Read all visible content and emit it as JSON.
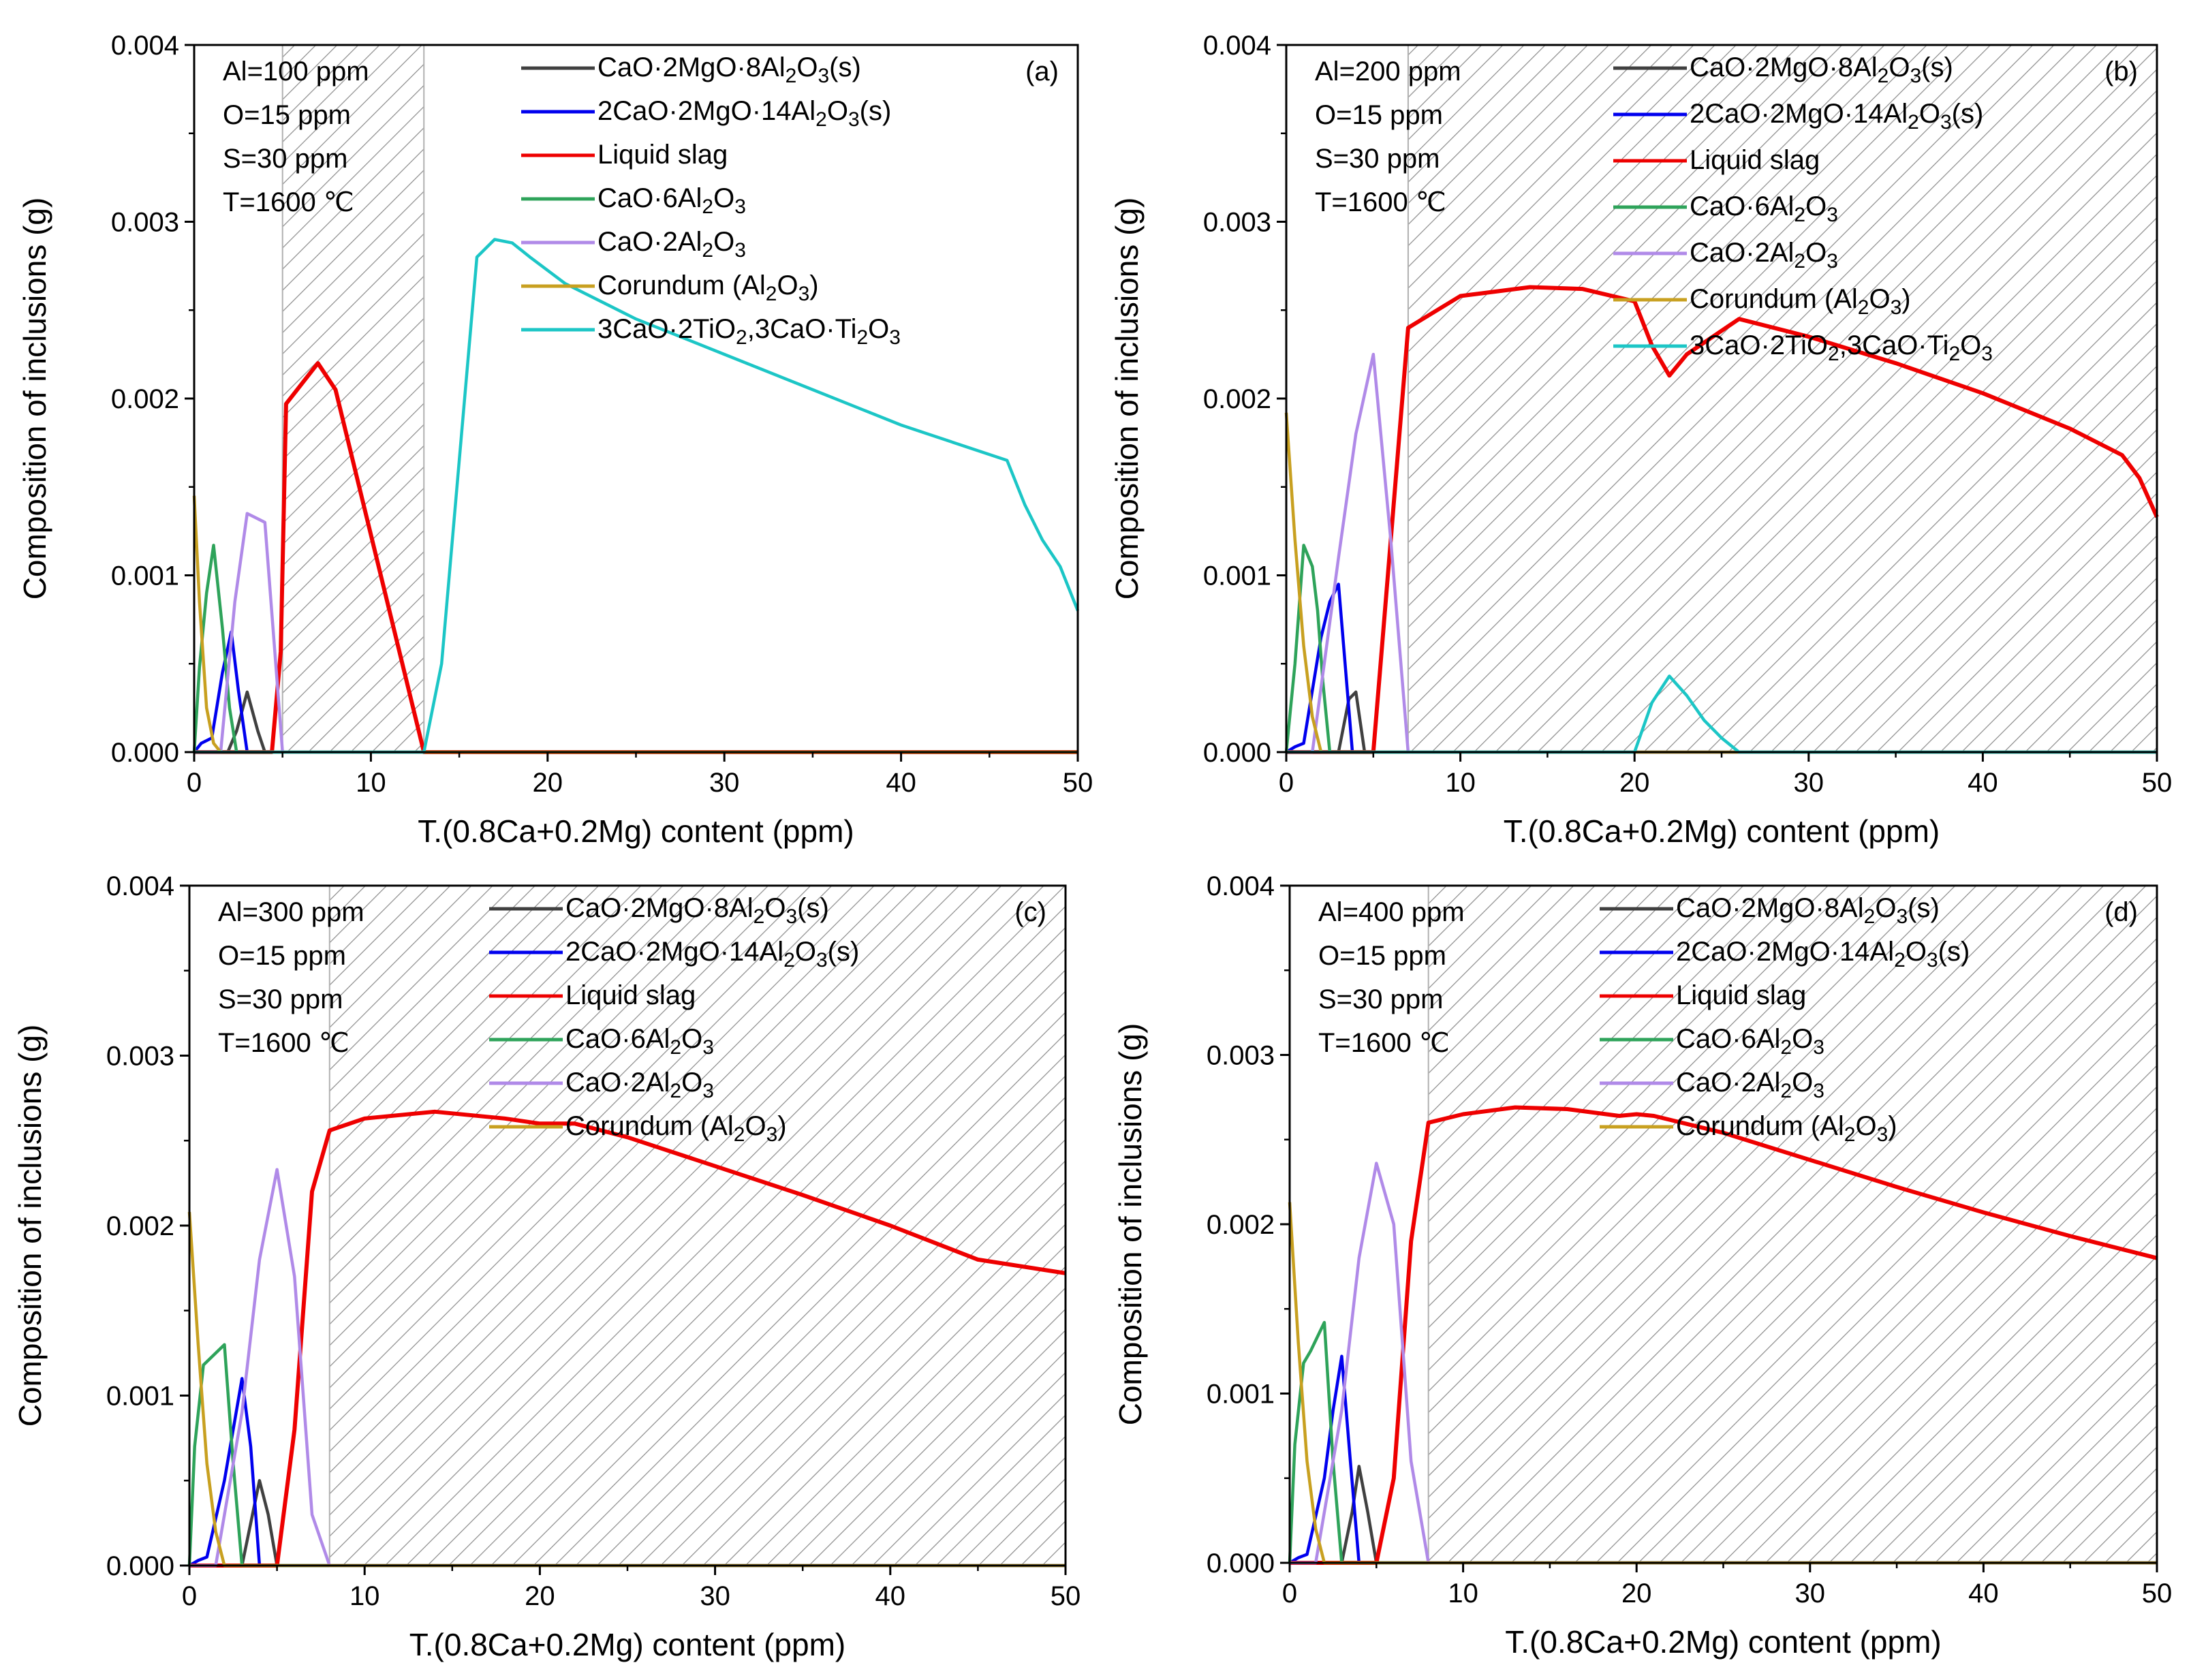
{
  "figure": {
    "panels_count": 4
  },
  "chart_data": [
    {
      "panel": "(a)",
      "type": "line",
      "xlabel": "T.(0.8Ca+0.2Mg) content (ppm)",
      "ylabel": "Composition of inclusions (g)",
      "xlim": [
        0,
        50
      ],
      "ylim": [
        0,
        0.004
      ],
      "xticks": [
        "0",
        "10",
        "20",
        "30",
        "40",
        "50"
      ],
      "yticks": [
        "0.000",
        "0.001",
        "0.002",
        "0.003",
        "0.004"
      ],
      "conditions": [
        "Al=100 ppm",
        "O=15 ppm",
        "S=30 ppm",
        "T=1600 ℃"
      ],
      "shaded_regions": [
        [
          5,
          13
        ]
      ],
      "legend_placement": "top-center",
      "series": [
        {
          "name": "CaO·2MgO·8Al2O3(s)",
          "color": "#404040",
          "x": [
            0,
            1.9,
            2.4,
            3.0,
            3.6,
            4.0,
            50
          ],
          "y": [
            0,
            0,
            0.00012,
            0.00034,
            0.00012,
            0,
            0
          ]
        },
        {
          "name": "2CaO·2MgO·14Al2O3(s)",
          "color": "#0000ee",
          "x": [
            0,
            0.4,
            1.0,
            1.6,
            2.1,
            2.5,
            3.0,
            50
          ],
          "y": [
            0,
            5e-05,
            8e-05,
            0.00045,
            0.00068,
            0.00035,
            0,
            0
          ]
        },
        {
          "name": "Liquid slag",
          "color": "#ee0000",
          "x": [
            0,
            4.4,
            4.9,
            5.2,
            7.0,
            8.0,
            13.0,
            50
          ],
          "y": [
            0,
            0,
            0.00057,
            0.00197,
            0.0022,
            0.00205,
            0,
            0
          ]
        },
        {
          "name": "CaO·6Al2O3",
          "color": "#2ea35a",
          "x": [
            0,
            0.3,
            0.7,
            1.1,
            1.6,
            2.0,
            2.4,
            50
          ],
          "y": [
            0,
            0.00048,
            0.0009,
            0.00117,
            0.0007,
            0.00025,
            0,
            0
          ]
        },
        {
          "name": "CaO·2Al2O3",
          "color": "#b08ae8",
          "x": [
            0,
            1.5,
            2.3,
            3.0,
            4.0,
            5.0,
            50
          ],
          "y": [
            0,
            0,
            0.00085,
            0.00135,
            0.0013,
            0,
            0
          ]
        },
        {
          "name": "Corundum (Al2O3)",
          "color": "#c8a020",
          "x": [
            0,
            0.3,
            0.7,
            1.1,
            1.5,
            50
          ],
          "y": [
            0.00145,
            0.00085,
            0.00025,
            5e-05,
            0,
            0
          ]
        },
        {
          "name": "3CaO·2TiO2,3CaO·Ti2O3",
          "color": "#1cc6c6",
          "x": [
            0,
            13.0,
            14.0,
            16.0,
            17.0,
            18.0,
            19.0,
            21.0,
            25.0,
            30.0,
            35.0,
            40.0,
            46.0,
            47.0,
            48.0,
            49.0,
            50.0
          ],
          "y": [
            0,
            0,
            0.0005,
            0.0028,
            0.0029,
            0.00288,
            0.0028,
            0.00265,
            0.00245,
            0.00225,
            0.00205,
            0.00185,
            0.00165,
            0.0014,
            0.0012,
            0.00105,
            0.0008
          ]
        }
      ]
    },
    {
      "panel": "(b)",
      "type": "line",
      "xlabel": "T.(0.8Ca+0.2Mg) content (ppm)",
      "ylabel": "Composition of inclusions (g)",
      "xlim": [
        0,
        50
      ],
      "ylim": [
        0,
        0.004
      ],
      "xticks": [
        "0",
        "10",
        "20",
        "30",
        "40",
        "50"
      ],
      "yticks": [
        "0.000",
        "0.001",
        "0.002",
        "0.003",
        "0.004"
      ],
      "conditions": [
        "Al=200 ppm",
        "O=15 ppm",
        "S=30 ppm",
        "T=1600 ℃"
      ],
      "shaded_regions": [
        [
          7,
          50
        ]
      ],
      "legend_placement": "top-center",
      "series": [
        {
          "name": "CaO·2MgO·8Al2O3(s)",
          "color": "#404040",
          "x": [
            0,
            3.0,
            3.6,
            4.0,
            4.5,
            50
          ],
          "y": [
            0,
            0,
            0.0003,
            0.00034,
            0,
            0
          ]
        },
        {
          "name": "2CaO·2MgO·14Al2O3(s)",
          "color": "#0000ee",
          "x": [
            0,
            0.5,
            1.0,
            2.0,
            2.5,
            3.0,
            3.8,
            50
          ],
          "y": [
            0,
            3e-05,
            5e-05,
            0.00065,
            0.00085,
            0.00095,
            0,
            0
          ]
        },
        {
          "name": "Liquid slag",
          "color": "#ee0000",
          "x": [
            0,
            5.0,
            6.0,
            7.0,
            10,
            14,
            17,
            20,
            21,
            22,
            23,
            26,
            30,
            35,
            40,
            45,
            48,
            49,
            50
          ],
          "y": [
            0,
            0,
            0.0012,
            0.0024,
            0.00258,
            0.00263,
            0.00262,
            0.00255,
            0.0023,
            0.00213,
            0.00225,
            0.00245,
            0.00235,
            0.0022,
            0.00203,
            0.00183,
            0.00168,
            0.00155,
            0.00133
          ]
        },
        {
          "name": "CaO·6Al2O3",
          "color": "#2ea35a",
          "x": [
            0,
            0.5,
            1.0,
            1.5,
            1.8,
            2.1,
            2.5,
            50
          ],
          "y": [
            0,
            0.0005,
            0.00117,
            0.00105,
            0.0008,
            0.0004,
            0,
            0
          ]
        },
        {
          "name": "CaO·2Al2O3",
          "color": "#b08ae8",
          "x": [
            0,
            1.5,
            3.0,
            4.0,
            5.0,
            6.0,
            7.0,
            50
          ],
          "y": [
            0,
            0,
            0.0011,
            0.0018,
            0.00225,
            0.0012,
            0,
            0
          ]
        },
        {
          "name": "Corundum (Al2O3)",
          "color": "#c8a020",
          "x": [
            0,
            0.5,
            1.0,
            1.5,
            2.0,
            50
          ],
          "y": [
            0.00192,
            0.0012,
            0.0006,
            0.0002,
            0,
            0
          ]
        },
        {
          "name": "3CaO·2TiO2,3CaO·Ti2O3",
          "color": "#1cc6c6",
          "x": [
            0,
            20.0,
            21.0,
            22.0,
            23.0,
            24.0,
            25.0,
            26.0,
            50
          ],
          "y": [
            0,
            0,
            0.00028,
            0.00043,
            0.00032,
            0.00018,
            8e-05,
            0,
            0
          ]
        }
      ]
    },
    {
      "panel": "(c)",
      "type": "line",
      "xlabel": "T.(0.8Ca+0.2Mg) content (ppm)",
      "ylabel": "Composition of inclusions (g)",
      "xlim": [
        0,
        50
      ],
      "ylim": [
        0,
        0.004
      ],
      "xticks": [
        "0",
        "10",
        "20",
        "30",
        "40",
        "50"
      ],
      "yticks": [
        "0.000",
        "0.001",
        "0.002",
        "0.003",
        "0.004"
      ],
      "conditions": [
        "Al=300 ppm",
        "O=15 ppm",
        "S=30 ppm",
        "T=1600 ℃"
      ],
      "shaded_regions": [
        [
          8,
          50
        ]
      ],
      "legend_placement": "top-center",
      "series": [
        {
          "name": "CaO·2MgO·8Al2O3(s)",
          "color": "#404040",
          "x": [
            0,
            3.0,
            3.6,
            4.0,
            4.5,
            5.0,
            50
          ],
          "y": [
            0,
            0,
            0.0003,
            0.0005,
            0.0003,
            0,
            0
          ]
        },
        {
          "name": "2CaO·2MgO·14Al2O3(s)",
          "color": "#0000ee",
          "x": [
            0,
            0.5,
            1.0,
            2.0,
            2.5,
            3.0,
            3.5,
            4.0,
            50
          ],
          "y": [
            0,
            3e-05,
            5e-05,
            0.0005,
            0.0008,
            0.0011,
            0.0007,
            0,
            0
          ]
        },
        {
          "name": "Liquid slag",
          "color": "#ee0000",
          "x": [
            0,
            5.0,
            6.0,
            7.0,
            8.0,
            10,
            14,
            18,
            20,
            22,
            25,
            30,
            35,
            40,
            45,
            50
          ],
          "y": [
            0,
            0,
            0.0008,
            0.0022,
            0.00256,
            0.00263,
            0.00267,
            0.00263,
            0.0026,
            0.0026,
            0.00252,
            0.00235,
            0.00218,
            0.002,
            0.0018,
            0.00172
          ]
        },
        {
          "name": "CaO·6Al2O3",
          "color": "#2ea35a",
          "x": [
            0,
            0.3,
            0.8,
            1.2,
            2.0,
            2.5,
            3.0,
            50
          ],
          "y": [
            0,
            0.0007,
            0.00118,
            0.00122,
            0.0013,
            0.0006,
            0,
            0
          ]
        },
        {
          "name": "CaO·2Al2O3",
          "color": "#b08ae8",
          "x": [
            0,
            1.5,
            3.0,
            4.0,
            5.0,
            6.0,
            7.0,
            8.0,
            50
          ],
          "y": [
            0,
            0,
            0.0009,
            0.0018,
            0.00233,
            0.0017,
            0.0003,
            0,
            0
          ]
        },
        {
          "name": "Corundum (Al2O3)",
          "color": "#c8a020",
          "x": [
            0,
            0.5,
            1.0,
            1.5,
            2.0,
            50
          ],
          "y": [
            0.00208,
            0.0013,
            0.0006,
            0.0002,
            0,
            0
          ]
        }
      ]
    },
    {
      "panel": "(d)",
      "type": "line",
      "xlabel": "T.(0.8Ca+0.2Mg) content (ppm)",
      "ylabel": "Composition of inclusions (g)",
      "xlim": [
        0,
        50
      ],
      "ylim": [
        0,
        0.004
      ],
      "xticks": [
        "0",
        "10",
        "20",
        "30",
        "40",
        "50"
      ],
      "yticks": [
        "0.000",
        "0.001",
        "0.002",
        "0.003",
        "0.004"
      ],
      "conditions": [
        "Al=400 ppm",
        "O=15 ppm",
        "S=30 ppm",
        "T=1600 ℃"
      ],
      "shaded_regions": [
        [
          8,
          50
        ]
      ],
      "legend_placement": "top-center",
      "series": [
        {
          "name": "CaO·2MgO·8Al2O3(s)",
          "color": "#404040",
          "x": [
            0,
            3.0,
            3.6,
            4.0,
            4.5,
            5.0,
            50
          ],
          "y": [
            0,
            0,
            0.0003,
            0.00057,
            0.0003,
            0,
            0
          ]
        },
        {
          "name": "2CaO·2MgO·14Al2O3(s)",
          "color": "#0000ee",
          "x": [
            0,
            0.5,
            1.0,
            2.0,
            2.5,
            3.0,
            3.5,
            4.0,
            50
          ],
          "y": [
            0,
            3e-05,
            5e-05,
            0.0005,
            0.0009,
            0.00122,
            0.0006,
            0,
            0
          ]
        },
        {
          "name": "Liquid slag",
          "color": "#ee0000",
          "x": [
            0,
            5.0,
            6.0,
            7.0,
            8.0,
            10,
            13,
            16,
            19,
            20,
            21,
            25,
            30,
            35,
            40,
            45,
            50
          ],
          "y": [
            0,
            0,
            0.0005,
            0.0019,
            0.0026,
            0.00265,
            0.00269,
            0.00268,
            0.00264,
            0.00265,
            0.00264,
            0.00254,
            0.00238,
            0.00222,
            0.00207,
            0.00193,
            0.0018
          ]
        },
        {
          "name": "CaO·6Al2O3",
          "color": "#2ea35a",
          "x": [
            0,
            0.3,
            0.8,
            1.2,
            2.0,
            2.5,
            3.0,
            50
          ],
          "y": [
            0,
            0.0007,
            0.00118,
            0.00125,
            0.00142,
            0.0006,
            0,
            0
          ]
        },
        {
          "name": "CaO·2Al2O3",
          "color": "#b08ae8",
          "x": [
            0,
            1.5,
            3.0,
            4.0,
            5.0,
            6.0,
            7.0,
            8.0,
            50
          ],
          "y": [
            0,
            0,
            0.0009,
            0.0018,
            0.00236,
            0.002,
            0.0006,
            0,
            0
          ]
        },
        {
          "name": "Corundum (Al2O3)",
          "color": "#c8a020",
          "x": [
            0,
            0.5,
            1.0,
            1.5,
            2.0,
            50
          ],
          "y": [
            0.00213,
            0.0013,
            0.0006,
            0.0002,
            0,
            0
          ]
        }
      ]
    }
  ]
}
